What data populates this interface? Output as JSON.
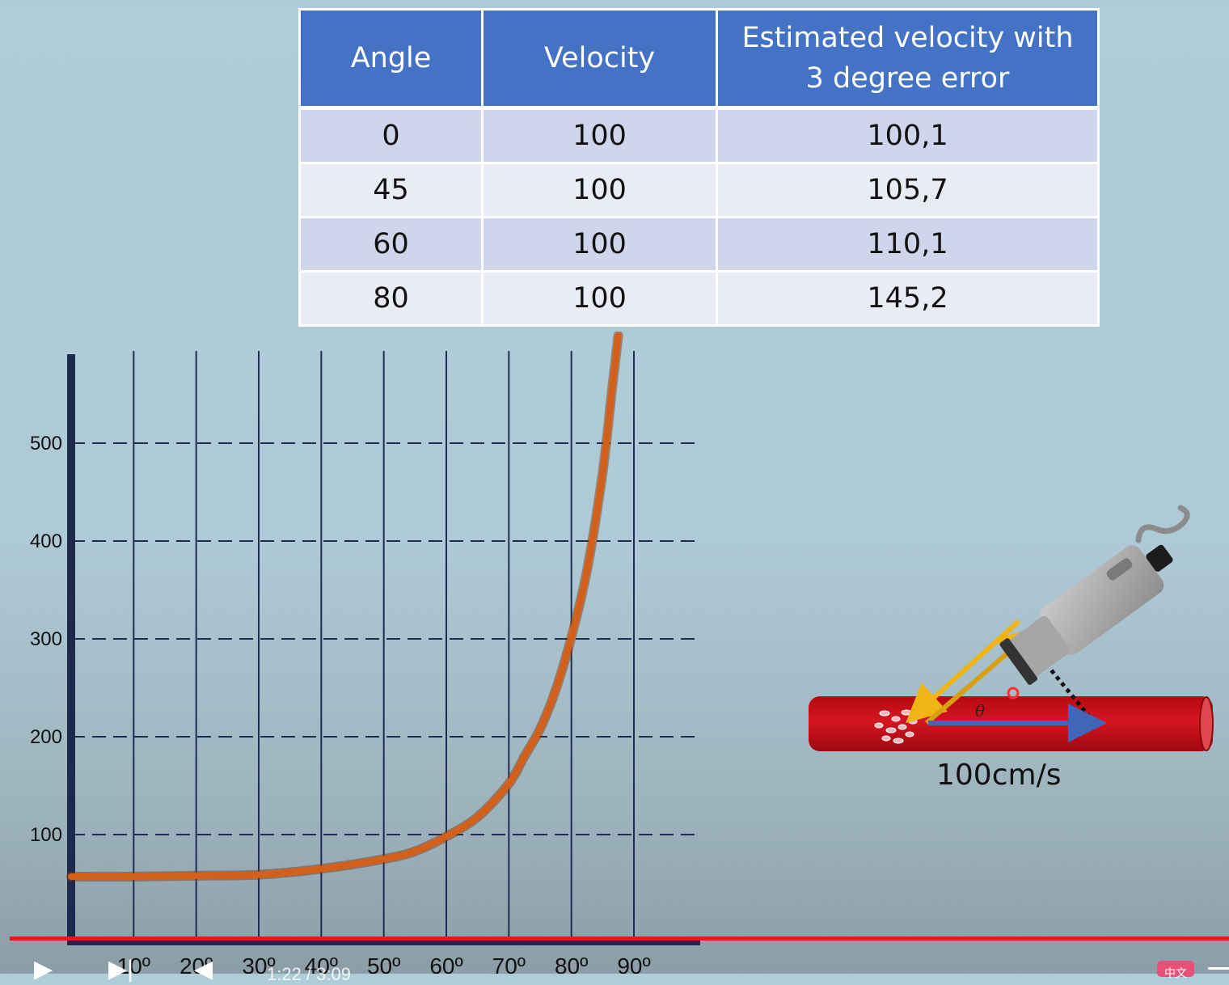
{
  "table": {
    "headers": [
      "Angle",
      "Velocity",
      "Estimated velocity with 3 degree error"
    ],
    "rows": [
      [
        "0",
        "100",
        "100,1"
      ],
      [
        "45",
        "100",
        "105,7"
      ],
      [
        "60",
        "100",
        "110,1"
      ],
      [
        "80",
        "100",
        "145,2"
      ]
    ]
  },
  "chart_data": {
    "type": "line",
    "title": "",
    "xlabel": "",
    "ylabel": "",
    "x_tick_labels": [
      "10º",
      "20º",
      "30º",
      "40º",
      "50º",
      "60º",
      "70º",
      "80º",
      "90º"
    ],
    "y_tick_labels": [
      "100",
      "200",
      "300",
      "400",
      "500"
    ],
    "xlim": [
      0,
      90
    ],
    "ylim": [
      0,
      575
    ],
    "grid": true,
    "line_color": "#d2601a",
    "series": [
      {
        "x": [
          0,
          10,
          20,
          30,
          40,
          50,
          55,
          60,
          65,
          70,
          72.5,
          75,
          77.5,
          80,
          82.5,
          85,
          86.5,
          87.5
        ],
        "y": [
          57,
          57,
          58,
          59,
          65,
          75,
          83,
          98,
          118,
          152,
          180,
          208,
          248,
          302,
          370,
          470,
          555,
          610
        ]
      }
    ]
  },
  "diagram": {
    "speed_label": "100cm/s",
    "angle_symbol": "θ",
    "vessel_color": "#c8111a",
    "beam_color": "#f0b415",
    "flow_arrow_color": "#3f66b8"
  },
  "player": {
    "time_readout": "1:22 / 3:09",
    "subs_label": "中文",
    "progress_color": "#e31d1d"
  }
}
